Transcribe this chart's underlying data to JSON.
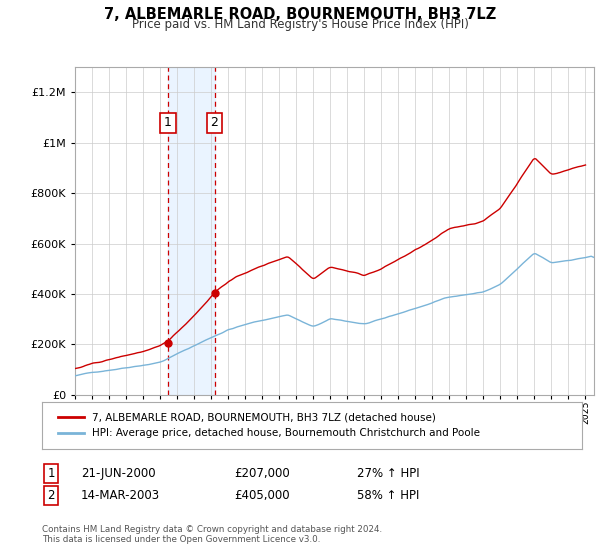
{
  "title": "7, ALBEMARLE ROAD, BOURNEMOUTH, BH3 7LZ",
  "subtitle": "Price paid vs. HM Land Registry's House Price Index (HPI)",
  "purchase1_label": "21-JUN-2000",
  "purchase1_price": 207000,
  "purchase1_hpi": "27% ↑ HPI",
  "purchase2_label": "14-MAR-2003",
  "purchase2_price": 405000,
  "purchase2_hpi": "58% ↑ HPI",
  "legend_line1": "7, ALBEMARLE ROAD, BOURNEMOUTH, BH3 7LZ (detached house)",
  "legend_line2": "HPI: Average price, detached house, Bournemouth Christchurch and Poole",
  "footer": "Contains HM Land Registry data © Crown copyright and database right 2024.\nThis data is licensed under the Open Government Licence v3.0.",
  "hpi_color": "#7ab4d8",
  "price_color": "#cc0000",
  "bg_color": "#ffffff",
  "grid_color": "#cccccc",
  "shade_color": "#ddeeff",
  "ylim": [
    0,
    1300000
  ],
  "yticks": [
    0,
    200000,
    400000,
    600000,
    800000,
    1000000,
    1200000
  ],
  "ytick_labels": [
    "£0",
    "£200K",
    "£400K",
    "£600K",
    "£800K",
    "£1M",
    "£1.2M"
  ],
  "p1_x": 2000.46,
  "p2_x": 2003.2,
  "xmin": 1995.0,
  "xmax": 2025.5
}
